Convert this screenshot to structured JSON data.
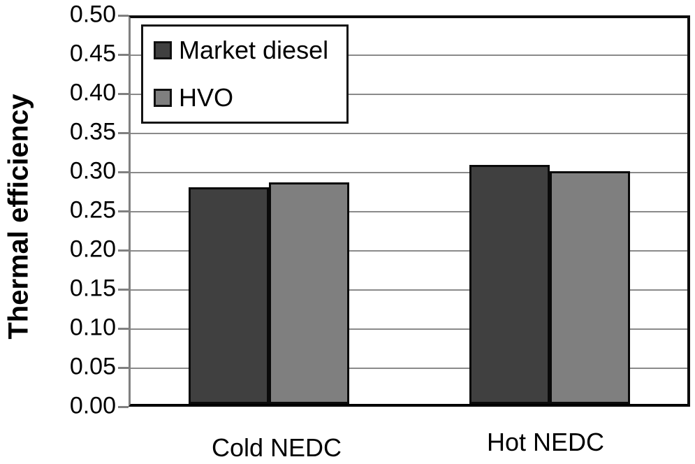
{
  "chart_data": {
    "type": "bar",
    "categories": [
      "Cold NEDC",
      "Hot NEDC"
    ],
    "series": [
      {
        "name": "Market diesel",
        "color": "#404040",
        "values": [
          0.277,
          0.305
        ]
      },
      {
        "name": "HVO",
        "color": "#7f7f7f",
        "values": [
          0.283,
          0.297
        ]
      }
    ],
    "title": "",
    "xlabel": "",
    "ylabel": "Thermal efficiency",
    "ylim": [
      0,
      0.5
    ],
    "ytick_step": 0.05,
    "yticks": [
      "0.50",
      "0.45",
      "0.40",
      "0.35",
      "0.30",
      "0.25",
      "0.20",
      "0.15",
      "0.10",
      "0.05",
      "0.00"
    ],
    "grid": true,
    "legend_position": "top-left",
    "colors": {
      "bar_border": "#0a0a0a",
      "gridline": "#8a8a8a",
      "axis_line": "#808080",
      "plot_border": "#0d0d0d",
      "text": "#000000",
      "background": "#ffffff"
    }
  }
}
